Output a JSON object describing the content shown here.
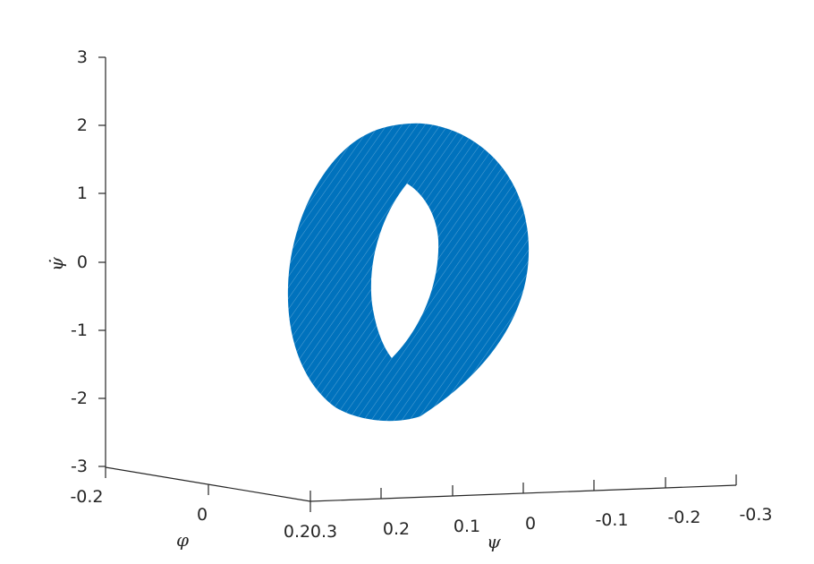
{
  "chart_data": {
    "type": "surface3d",
    "title": "",
    "x_axis": {
      "label": "ψ",
      "ticks": [
        0.3,
        0.2,
        0.1,
        0,
        -0.1,
        -0.2,
        -0.3
      ],
      "tick_labels": [
        "0.3",
        "0.2",
        "0.1",
        "0",
        "-0.1",
        "-0.2",
        "-0.3"
      ],
      "lim": [
        -0.3,
        0.3
      ]
    },
    "y_axis": {
      "label": "φ",
      "ticks": [
        -0.2,
        0,
        0.2
      ],
      "tick_labels": [
        "-0.2",
        "0",
        "0.2"
      ],
      "lim": [
        -0.2,
        0.2
      ]
    },
    "z_axis": {
      "label": "ψ̇",
      "ticks": [
        3,
        2,
        1,
        0,
        -1,
        -2,
        -3
      ],
      "tick_labels": [
        "3",
        "2",
        "1",
        "0",
        "-1",
        "-2",
        "-3"
      ],
      "lim": [
        -3,
        3
      ]
    },
    "surface": {
      "shape": "torus-like invariant tube",
      "color": "#0072BD",
      "psi_range": [
        -0.17,
        0.17
      ],
      "phi_range": [
        -0.12,
        0.12
      ],
      "psidot_range": [
        -2.2,
        2.1
      ]
    },
    "grid": false
  }
}
